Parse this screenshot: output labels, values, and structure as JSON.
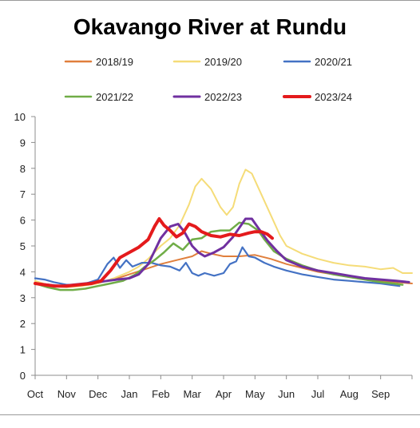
{
  "chart_data": {
    "type": "line",
    "title": "Okavango River at Rundu",
    "xlabel": "",
    "ylabel": "",
    "ylim": [
      0,
      10
    ],
    "yticks": [
      0,
      1,
      2,
      3,
      4,
      5,
      6,
      7,
      8,
      9,
      10
    ],
    "xlim": [
      0,
      12
    ],
    "xticks": [
      {
        "v": 0,
        "label": "Oct"
      },
      {
        "v": 1,
        "label": "Nov"
      },
      {
        "v": 2,
        "label": "Dec"
      },
      {
        "v": 3,
        "label": "Jan"
      },
      {
        "v": 4,
        "label": "Feb"
      },
      {
        "v": 5,
        "label": "Mar"
      },
      {
        "v": 6,
        "label": "Apr"
      },
      {
        "v": 7,
        "label": "May"
      },
      {
        "v": 8,
        "label": "Jun"
      },
      {
        "v": 9,
        "label": "Jul"
      },
      {
        "v": 10,
        "label": "Aug"
      },
      {
        "v": 11,
        "label": "Sep"
      }
    ],
    "grid": false,
    "legend_position": "top",
    "series": [
      {
        "name": "2018/19",
        "color": "#e07f3c",
        "width": 2,
        "x": [
          0,
          0.3,
          0.6,
          1,
          1.5,
          2,
          2.5,
          3,
          3.5,
          4,
          4.5,
          5,
          5.3,
          5.6,
          6,
          6.5,
          7,
          7.5,
          8,
          8.5,
          9,
          9.5,
          10,
          10.5,
          11,
          11.5,
          12
        ],
        "y": [
          3.6,
          3.5,
          3.45,
          3.45,
          3.5,
          3.6,
          3.7,
          3.9,
          4.1,
          4.3,
          4.45,
          4.6,
          4.8,
          4.7,
          4.6,
          4.6,
          4.65,
          4.5,
          4.3,
          4.15,
          4.0,
          3.9,
          3.8,
          3.7,
          3.65,
          3.6,
          3.55
        ]
      },
      {
        "name": "2019/20",
        "color": "#f5dc78",
        "width": 2,
        "x": [
          0,
          0.5,
          1,
          1.5,
          2,
          2.5,
          3,
          3.3,
          3.6,
          4,
          4.3,
          4.6,
          4.9,
          5.1,
          5.3,
          5.6,
          5.9,
          6.1,
          6.3,
          6.5,
          6.7,
          6.9,
          7.2,
          7.5,
          7.8,
          8,
          8.5,
          9,
          9.5,
          10,
          10.5,
          11,
          11.4,
          11.7,
          12
        ],
        "y": [
          3.65,
          3.45,
          3.4,
          3.45,
          3.55,
          3.75,
          4.0,
          4.2,
          4.5,
          5.0,
          5.3,
          5.8,
          6.6,
          7.3,
          7.6,
          7.2,
          6.5,
          6.2,
          6.5,
          7.4,
          7.95,
          7.8,
          7.0,
          6.2,
          5.4,
          5.0,
          4.7,
          4.5,
          4.35,
          4.25,
          4.2,
          4.1,
          4.15,
          3.95,
          3.95
        ]
      },
      {
        "name": "2020/21",
        "color": "#4472c4",
        "width": 2.2,
        "x": [
          0,
          0.3,
          0.6,
          1,
          1.5,
          2,
          2.3,
          2.5,
          2.7,
          2.9,
          3.1,
          3.4,
          3.7,
          4,
          4.3,
          4.6,
          4.8,
          5,
          5.2,
          5.4,
          5.7,
          6,
          6.2,
          6.4,
          6.6,
          6.8,
          7,
          7.3,
          7.6,
          8,
          8.5,
          9,
          9.5,
          10,
          10.5,
          11,
          11.3,
          11.6
        ],
        "y": [
          3.75,
          3.7,
          3.6,
          3.5,
          3.5,
          3.7,
          4.3,
          4.55,
          4.15,
          4.45,
          4.2,
          4.35,
          4.35,
          4.25,
          4.2,
          4.05,
          4.35,
          3.95,
          3.85,
          3.95,
          3.85,
          3.95,
          4.3,
          4.4,
          4.95,
          4.6,
          4.55,
          4.35,
          4.2,
          4.05,
          3.9,
          3.8,
          3.7,
          3.65,
          3.6,
          3.55,
          3.5,
          3.45
        ]
      },
      {
        "name": "2021/22",
        "color": "#70ad47",
        "width": 2.5,
        "x": [
          0,
          0.4,
          0.8,
          1.2,
          1.6,
          2,
          2.4,
          2.8,
          3.2,
          3.5,
          3.8,
          4.1,
          4.4,
          4.7,
          5,
          5.3,
          5.6,
          5.9,
          6.2,
          6.5,
          6.8,
          7.1,
          7.3,
          7.6,
          8,
          8.5,
          9,
          9.5,
          10,
          10.5,
          11,
          11.4,
          11.7
        ],
        "y": [
          3.55,
          3.4,
          3.3,
          3.3,
          3.35,
          3.45,
          3.55,
          3.65,
          3.9,
          4.2,
          4.45,
          4.75,
          5.1,
          4.85,
          5.25,
          5.3,
          5.55,
          5.6,
          5.6,
          5.9,
          5.85,
          5.6,
          5.25,
          4.8,
          4.5,
          4.25,
          4.05,
          3.9,
          3.8,
          3.7,
          3.6,
          3.55,
          3.5
        ]
      },
      {
        "name": "2022/23",
        "color": "#7030a0",
        "width": 3,
        "x": [
          0,
          0.4,
          0.8,
          1.2,
          1.6,
          2,
          2.3,
          2.6,
          3,
          3.3,
          3.6,
          3.8,
          4,
          4.3,
          4.55,
          4.75,
          5,
          5.2,
          5.4,
          5.7,
          6,
          6.3,
          6.5,
          6.7,
          6.9,
          7.1,
          7.4,
          7.7,
          8,
          8.5,
          9,
          9.5,
          10,
          10.5,
          11,
          11.5,
          11.9
        ],
        "y": [
          3.55,
          3.5,
          3.45,
          3.5,
          3.55,
          3.6,
          3.65,
          3.7,
          3.75,
          3.9,
          4.3,
          4.8,
          5.3,
          5.75,
          5.85,
          5.55,
          5.0,
          4.75,
          4.6,
          4.75,
          4.95,
          5.35,
          5.7,
          6.05,
          6.05,
          5.7,
          5.2,
          4.8,
          4.45,
          4.2,
          4.05,
          3.95,
          3.85,
          3.75,
          3.7,
          3.65,
          3.6
        ]
      },
      {
        "name": "2023/24",
        "color": "#e41a1c",
        "width": 4,
        "x": [
          0,
          0.3,
          0.6,
          1,
          1.4,
          1.8,
          2.1,
          2.4,
          2.7,
          3,
          3.3,
          3.6,
          3.8,
          3.95,
          4.1,
          4.3,
          4.5,
          4.7,
          4.9,
          5.1,
          5.3,
          5.6,
          5.9,
          6.2,
          6.5,
          6.8,
          7.0,
          7.2,
          7.4,
          7.55
        ],
        "y": [
          3.55,
          3.5,
          3.45,
          3.45,
          3.5,
          3.55,
          3.65,
          4.05,
          4.55,
          4.75,
          4.95,
          5.25,
          5.75,
          6.05,
          5.8,
          5.6,
          5.35,
          5.5,
          5.85,
          5.75,
          5.55,
          5.4,
          5.35,
          5.45,
          5.4,
          5.5,
          5.55,
          5.55,
          5.45,
          5.3
        ]
      }
    ]
  }
}
